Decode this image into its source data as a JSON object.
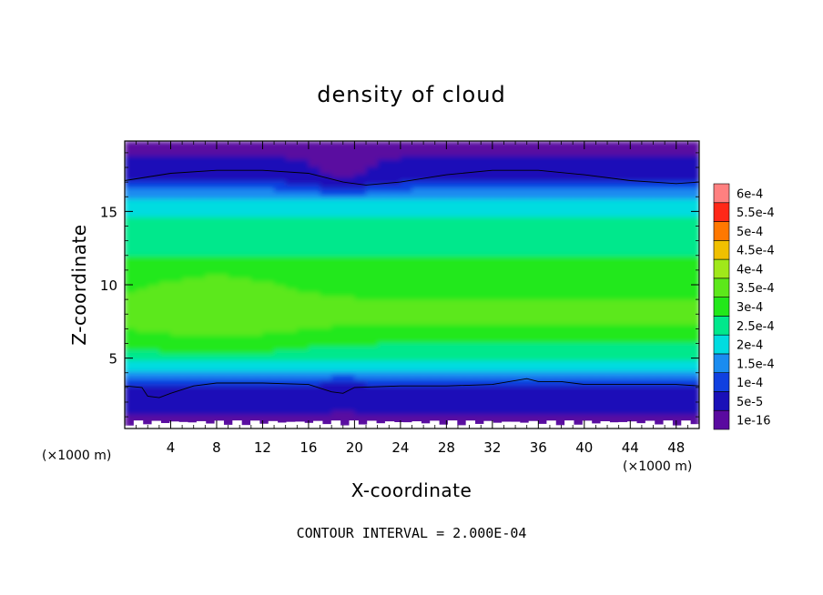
{
  "chart_data": {
    "type": "heatmap",
    "title": "density of cloud",
    "xlabel": "X-coordinate",
    "ylabel": "Z-coordinate",
    "x_unit": "(×1000 m)",
    "y_unit": "(×1000 m)",
    "xlim": [
      0,
      50
    ],
    "ylim": [
      0.2,
      19.8
    ],
    "x_ticks": [
      4,
      8,
      12,
      16,
      20,
      24,
      28,
      32,
      36,
      40,
      44,
      48
    ],
    "x_tick_labels": [
      "4",
      "8",
      "12",
      "16",
      "20",
      "24",
      "28",
      "32",
      "36",
      "40",
      "44",
      "48"
    ],
    "y_ticks": [
      5,
      10,
      15
    ],
    "y_tick_labels": [
      "5",
      "10",
      "15"
    ],
    "caption": "CONTOUR INTERVAL = 2.000E-04",
    "colorbar": {
      "labels": [
        "1e-16",
        "5e-5",
        "1e-4",
        "1.5e-4",
        "2e-4",
        "2.5e-4",
        "3e-4",
        "3.5e-4",
        "4e-4",
        "4.5e-4",
        "5e-4",
        "5.5e-4",
        "6e-4"
      ],
      "colors": [
        "#5a0aa0",
        "#1a10b8",
        "#1040e0",
        "#1a8cf0",
        "#00dce0",
        "#00e88c",
        "#22e81a",
        "#5ce81a",
        "#a0e81a",
        "#f0c000",
        "#ff7800",
        "#ff2818",
        "#ff8080"
      ]
    },
    "profile_description": "density varies mainly with height; peak ~3.7e-4 near Z=8, bands roughly horizontal",
    "vertical_profile": [
      {
        "z": 0.2,
        "density": 0.0
      },
      {
        "z": 0.8,
        "density": 3e-05
      },
      {
        "z": 1.5,
        "density": 7e-05
      },
      {
        "z": 2.3,
        "density": 9e-05
      },
      {
        "z": 3.2,
        "density": 0.0001
      },
      {
        "z": 4.0,
        "density": 0.00019
      },
      {
        "z": 5.0,
        "density": 0.00026
      },
      {
        "z": 6.5,
        "density": 0.00032
      },
      {
        "z": 8.0,
        "density": 0.00037
      },
      {
        "z": 10.0,
        "density": 0.00033
      },
      {
        "z": 12.0,
        "density": 0.0003
      },
      {
        "z": 14.0,
        "density": 0.00028
      },
      {
        "z": 16.0,
        "density": 0.0002
      },
      {
        "z": 17.0,
        "density": 0.0001
      },
      {
        "z": 18.5,
        "density": 6e-05
      },
      {
        "z": 19.8,
        "density": 2e-05
      }
    ],
    "contour_lines": [
      {
        "value": 0.0001,
        "points": [
          [
            0,
            17.1
          ],
          [
            4,
            17.6
          ],
          [
            8,
            17.8
          ],
          [
            12,
            17.8
          ],
          [
            16,
            17.6
          ],
          [
            19,
            17.0
          ],
          [
            21,
            16.8
          ],
          [
            24,
            17.0
          ],
          [
            28,
            17.5
          ],
          [
            32,
            17.8
          ],
          [
            36,
            17.8
          ],
          [
            40,
            17.5
          ],
          [
            44,
            17.1
          ],
          [
            48,
            16.9
          ],
          [
            50,
            17.0
          ]
        ]
      },
      {
        "value": 0.0001,
        "points": [
          [
            0,
            3.1
          ],
          [
            1.5,
            3.0
          ],
          [
            2,
            2.4
          ],
          [
            3,
            2.3
          ],
          [
            4,
            2.6
          ],
          [
            6,
            3.1
          ],
          [
            8,
            3.3
          ],
          [
            10,
            3.3
          ],
          [
            12,
            3.3
          ],
          [
            16,
            3.2
          ],
          [
            18,
            2.7
          ],
          [
            19,
            2.6
          ],
          [
            20,
            3.0
          ],
          [
            24,
            3.1
          ],
          [
            28,
            3.1
          ],
          [
            32,
            3.2
          ],
          [
            35,
            3.6
          ],
          [
            36,
            3.4
          ],
          [
            38,
            3.4
          ],
          [
            40,
            3.2
          ],
          [
            44,
            3.2
          ],
          [
            48,
            3.2
          ],
          [
            50,
            3.1
          ]
        ]
      }
    ]
  }
}
